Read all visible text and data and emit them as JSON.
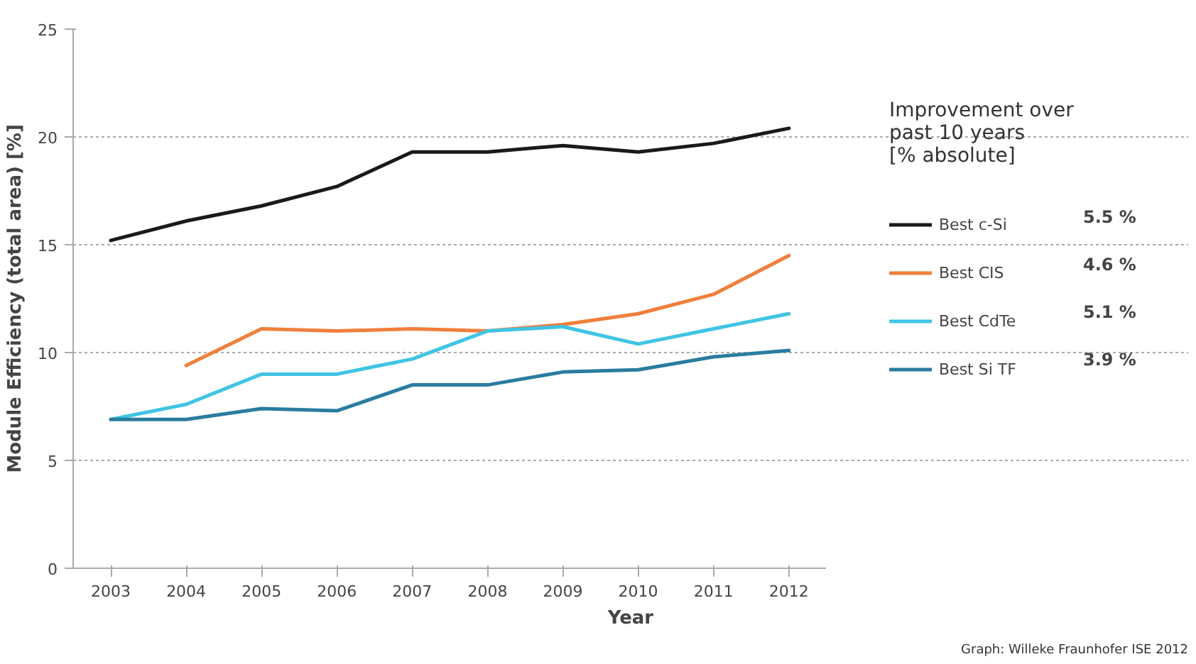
{
  "chart_data": {
    "type": "line",
    "xlabel": "Year",
    "ylabel": "Module Efficiency (total area) [%]",
    "legend_title": "Improvement over\npast 10 years\n[% absolute]",
    "categories": [
      "2003",
      "2004",
      "2005",
      "2006",
      "2007",
      "2008",
      "2009",
      "2010",
      "2011",
      "2012"
    ],
    "series": [
      {
        "name": "Best c-Si",
        "color": "#1a1a1a",
        "values": [
          15.2,
          16.1,
          16.8,
          17.7,
          19.3,
          19.3,
          19.6,
          19.3,
          19.7,
          20.4
        ]
      },
      {
        "name": "Best CIS",
        "color": "#f07f3c",
        "values": [
          null,
          9.4,
          11.1,
          11.0,
          11.1,
          11.0,
          11.3,
          11.8,
          12.7,
          14.5
        ]
      },
      {
        "name": "Best CdTe",
        "color": "#40c4e4",
        "values": [
          6.9,
          7.6,
          9.0,
          9.0,
          9.7,
          11.0,
          11.2,
          10.4,
          11.1,
          11.8
        ]
      },
      {
        "name": "Best Si TF",
        "color": "#2a7ca0",
        "values": [
          6.9,
          6.9,
          7.4,
          7.3,
          8.5,
          8.5,
          9.1,
          9.2,
          9.8,
          10.1
        ]
      }
    ],
    "annotations": [
      "5.5 %",
      "4.6 %",
      "5.1 %",
      "3.9 %",
      "Graph: Willeke Fraunhofer ISE 2012"
    ],
    "ylim": [
      0,
      25
    ],
    "yticks": [
      0,
      5,
      10,
      15,
      20,
      25
    ],
    "grid": "y",
    "legend": "right",
    "marker": "none",
    "line_style": "solid"
  }
}
